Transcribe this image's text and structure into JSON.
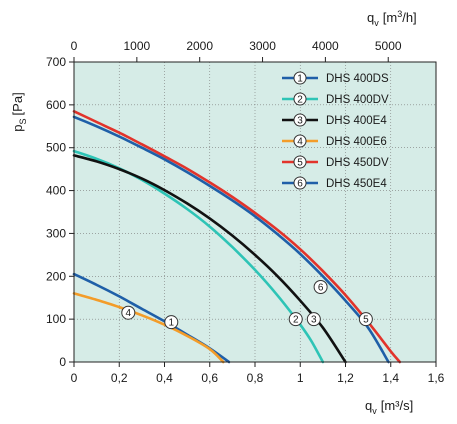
{
  "chart_data": {
    "type": "line",
    "title": "",
    "xlabel": {
      "main": "q",
      "sub": "v",
      "unit": "[m³/s]"
    },
    "x2label": {
      "main": "q",
      "sub": "v",
      "unit_pre": "[m",
      "unit_sup": "3",
      "unit_post": "/h]"
    },
    "ylabel": {
      "main": "p",
      "sub": "S",
      "unit": "[Pa]"
    },
    "xlim": [
      0,
      1.6
    ],
    "ylim": [
      0,
      700
    ],
    "x2lim": [
      0,
      5760
    ],
    "xticks": [
      "0",
      "0,2",
      "0,4",
      "0,6",
      "0,8",
      "1",
      "1,2",
      "1,4",
      "1,6"
    ],
    "xtick_values": [
      0,
      0.2,
      0.4,
      0.6,
      0.8,
      1.0,
      1.2,
      1.4,
      1.6
    ],
    "yticks": [
      "0",
      "100",
      "200",
      "300",
      "400",
      "500",
      "600",
      "700"
    ],
    "ytick_values": [
      0,
      100,
      200,
      300,
      400,
      500,
      600,
      700
    ],
    "x2ticks": [
      "0",
      "1000",
      "2000",
      "3000",
      "4000",
      "5000"
    ],
    "x2tick_values": [
      0,
      1000,
      2000,
      3000,
      4000,
      5000
    ],
    "grid": true,
    "background": "#d6ece7",
    "legend_position": "top-right",
    "series": [
      {
        "id": "1",
        "name": "DHS 400DS",
        "color": "#1f5fa8",
        "points": [
          [
            0,
            205
          ],
          [
            0.1,
            180
          ],
          [
            0.2,
            153
          ],
          [
            0.3,
            124
          ],
          [
            0.4,
            95
          ],
          [
            0.5,
            64
          ],
          [
            0.6,
            32
          ],
          [
            0.685,
            0
          ]
        ],
        "marker": [
          0.43,
          93
        ]
      },
      {
        "id": "2",
        "name": "DHS 400DV",
        "color": "#2ec4b6",
        "points": [
          [
            0,
            492
          ],
          [
            0.1,
            474
          ],
          [
            0.2,
            452
          ],
          [
            0.3,
            425
          ],
          [
            0.4,
            393
          ],
          [
            0.5,
            357
          ],
          [
            0.6,
            316
          ],
          [
            0.7,
            268
          ],
          [
            0.8,
            215
          ],
          [
            0.9,
            155
          ],
          [
            1.0,
            87
          ],
          [
            1.05,
            48
          ],
          [
            1.1,
            0
          ]
        ],
        "marker": [
          0.98,
          100
        ]
      },
      {
        "id": "3",
        "name": "DHS 400E4",
        "color": "#111111",
        "points": [
          [
            0,
            482
          ],
          [
            0.1,
            468
          ],
          [
            0.2,
            450
          ],
          [
            0.3,
            428
          ],
          [
            0.4,
            401
          ],
          [
            0.5,
            370
          ],
          [
            0.6,
            335
          ],
          [
            0.7,
            295
          ],
          [
            0.8,
            250
          ],
          [
            0.9,
            200
          ],
          [
            1.0,
            143
          ],
          [
            1.1,
            80
          ],
          [
            1.2,
            0
          ]
        ],
        "marker": [
          1.06,
          100
        ]
      },
      {
        "id": "4",
        "name": "DHS 400E6",
        "color": "#f39c29",
        "points": [
          [
            0,
            160
          ],
          [
            0.1,
            145
          ],
          [
            0.2,
            128
          ],
          [
            0.3,
            109
          ],
          [
            0.4,
            87
          ],
          [
            0.5,
            61
          ],
          [
            0.6,
            30
          ],
          [
            0.66,
            0
          ]
        ],
        "marker": [
          0.24,
          115
        ]
      },
      {
        "id": "5",
        "name": "DHS 450DV",
        "color": "#e2332b",
        "points": [
          [
            0,
            585
          ],
          [
            0.1,
            560
          ],
          [
            0.2,
            535
          ],
          [
            0.3,
            508
          ],
          [
            0.4,
            480
          ],
          [
            0.5,
            451
          ],
          [
            0.6,
            419
          ],
          [
            0.7,
            385
          ],
          [
            0.8,
            348
          ],
          [
            0.9,
            308
          ],
          [
            1.0,
            263
          ],
          [
            1.1,
            212
          ],
          [
            1.2,
            156
          ],
          [
            1.3,
            93
          ],
          [
            1.4,
            25
          ],
          [
            1.44,
            0
          ]
        ],
        "marker": [
          1.29,
          100
        ]
      },
      {
        "id": "6",
        "name": "DHS 450E4",
        "color": "#1f5fa8",
        "points": [
          [
            0,
            572
          ],
          [
            0.1,
            550
          ],
          [
            0.2,
            526
          ],
          [
            0.3,
            500
          ],
          [
            0.4,
            473
          ],
          [
            0.5,
            443
          ],
          [
            0.6,
            411
          ],
          [
            0.7,
            377
          ],
          [
            0.8,
            340
          ],
          [
            0.9,
            298
          ],
          [
            1.0,
            252
          ],
          [
            1.1,
            200
          ],
          [
            1.2,
            143
          ],
          [
            1.3,
            80
          ],
          [
            1.39,
            0
          ]
        ],
        "marker": [
          1.09,
          175
        ]
      }
    ]
  }
}
